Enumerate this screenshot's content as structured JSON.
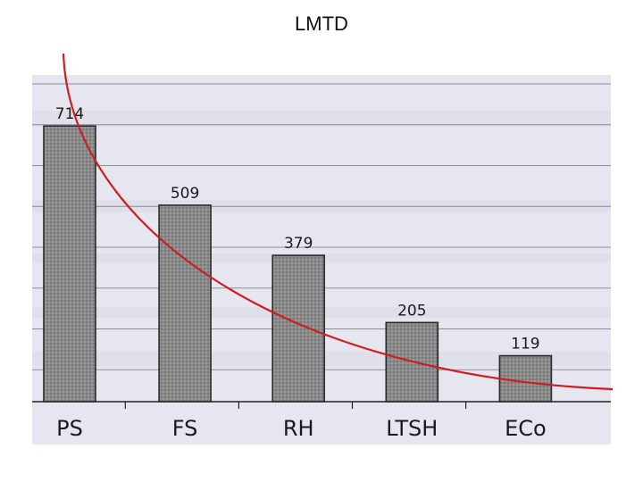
{
  "slide": {
    "title": "LMTD"
  },
  "chart_data": {
    "type": "bar",
    "title": "",
    "xlabel": "",
    "ylabel": "",
    "categories": [
      "PS",
      "FS",
      "RH",
      "LTSH",
      "ECo"
    ],
    "values": [
      714,
      509,
      379,
      205,
      119
    ],
    "data_labels": [
      "714",
      "509",
      "379",
      "205",
      "119"
    ],
    "ylim": [
      0,
      800
    ],
    "grid": true,
    "legend": "none",
    "trend_curve": {
      "present": true,
      "shape": "decaying curve drawn over bars"
    },
    "colors": {
      "bar_fill": "#8a8a8a",
      "bar_stroke": "#2a2a2a",
      "trend": "#cc1f1f",
      "scan_background": "#e6e6f0",
      "grid": "#555555"
    }
  }
}
